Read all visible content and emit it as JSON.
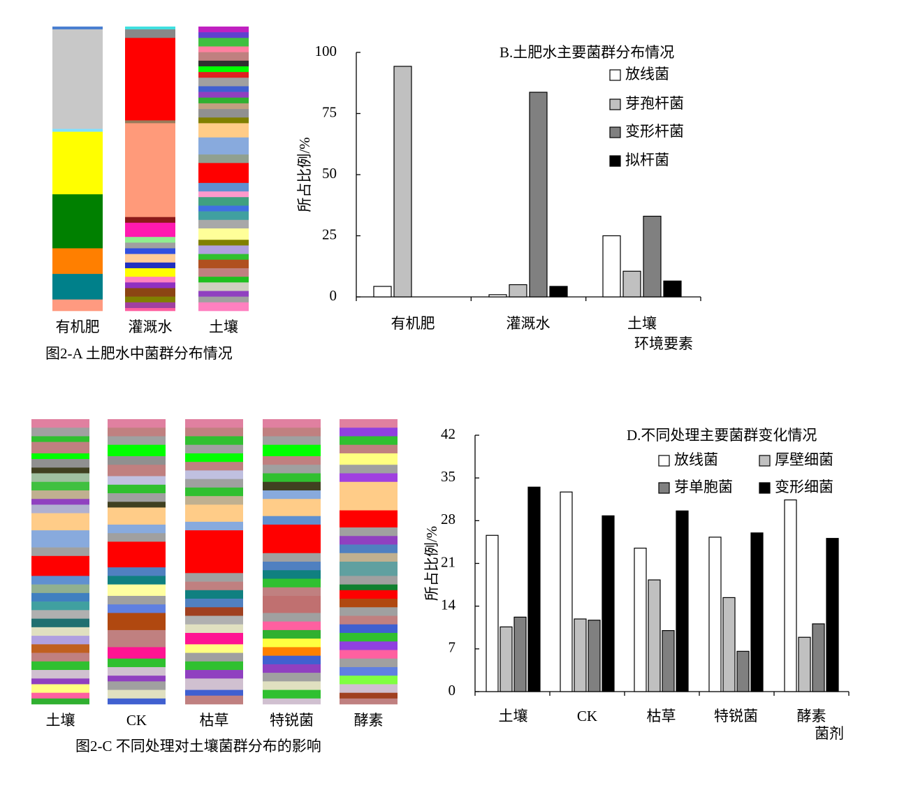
{
  "chart_data": [
    {
      "type": "stripes",
      "caption": "图2-A 土肥水中菌群分布情况",
      "categories": [
        "有机肥",
        "灌溉水",
        "土壤"
      ],
      "segments": [
        [
          {
            "value": 1,
            "color": "#4a7fd0"
          },
          {
            "value": 35,
            "color": "#c8c8c8"
          },
          {
            "value": 1,
            "color": "#80e0ff"
          },
          {
            "value": 22,
            "color": "#ffff00"
          },
          {
            "value": 19,
            "color": "#008000"
          },
          {
            "value": 9,
            "color": "#ff7f00"
          },
          {
            "value": 9,
            "color": "#00808a"
          },
          {
            "value": 4,
            "color": "#ff9a80"
          }
        ],
        [
          {
            "value": 1,
            "color": "#40e0e0"
          },
          {
            "value": 3,
            "color": "#888888"
          },
          {
            "value": 29,
            "color": "#ff0000"
          },
          {
            "value": 1,
            "color": "#9a7a5a"
          },
          {
            "value": 33,
            "color": "#ff9a7a"
          },
          {
            "value": 2,
            "color": "#8b1a1a"
          },
          {
            "value": 5,
            "color": "#ff1ab0"
          },
          {
            "value": 2,
            "color": "#90ee90"
          },
          {
            "value": 2,
            "color": "#a0a0a0"
          },
          {
            "value": 2,
            "color": "#3050e0"
          },
          {
            "value": 3,
            "color": "#ffcc99"
          },
          {
            "value": 2,
            "color": "#2030c0"
          },
          {
            "value": 3,
            "color": "#ffff00"
          },
          {
            "value": 2,
            "color": "#ff80c0"
          },
          {
            "value": 2,
            "color": "#9030c0"
          },
          {
            "value": 3,
            "color": "#8b4513"
          },
          {
            "value": 2,
            "color": "#808000"
          },
          {
            "value": 2,
            "color": "#a040a0"
          },
          {
            "value": 1,
            "color": "#ff60a0"
          }
        ],
        [
          {
            "value": 2,
            "color": "#c020c0"
          },
          {
            "value": 2,
            "color": "#6040d0"
          },
          {
            "value": 3,
            "color": "#40c040"
          },
          {
            "value": 2,
            "color": "#ff80a0"
          },
          {
            "value": 3,
            "color": "#c08080"
          },
          {
            "value": 2,
            "color": "#303030"
          },
          {
            "value": 2,
            "color": "#00ff00"
          },
          {
            "value": 2,
            "color": "#e02020"
          },
          {
            "value": 3,
            "color": "#a0a0a0"
          },
          {
            "value": 2,
            "color": "#4060d0"
          },
          {
            "value": 2,
            "color": "#9040c0"
          },
          {
            "value": 2,
            "color": "#30b030"
          },
          {
            "value": 2,
            "color": "#c0a080"
          },
          {
            "value": 3,
            "color": "#909090"
          },
          {
            "value": 2,
            "color": "#808000"
          },
          {
            "value": 5,
            "color": "#ffcc88"
          },
          {
            "value": 6,
            "color": "#88aadd"
          },
          {
            "value": 3,
            "color": "#90a090"
          },
          {
            "value": 7,
            "color": "#ff0000"
          },
          {
            "value": 3,
            "color": "#6090d0"
          },
          {
            "value": 2,
            "color": "#ff99cc"
          },
          {
            "value": 3,
            "color": "#40a080"
          },
          {
            "value": 2,
            "color": "#4070e0"
          },
          {
            "value": 3,
            "color": "#40a0a0"
          },
          {
            "value": 3,
            "color": "#a8a8a8"
          },
          {
            "value": 4,
            "color": "#ffff99"
          },
          {
            "value": 2,
            "color": "#808000"
          },
          {
            "value": 3,
            "color": "#b0a0e0"
          },
          {
            "value": 2,
            "color": "#30c030"
          },
          {
            "value": 3,
            "color": "#b05020"
          },
          {
            "value": 3,
            "color": "#c08080"
          },
          {
            "value": 2,
            "color": "#20c020"
          },
          {
            "value": 3,
            "color": "#d0d0c0"
          },
          {
            "value": 2,
            "color": "#9040c0"
          },
          {
            "value": 2,
            "color": "#a0a0a0"
          },
          {
            "value": 3,
            "color": "#ff80c0"
          }
        ]
      ]
    },
    {
      "type": "bar",
      "title": "B.土肥水主要菌群分布情况",
      "ylabel": "所占比例/%",
      "xlabel": "环境要素",
      "categories": [
        "有机肥",
        "灌溉水",
        "土壤"
      ],
      "ylim": [
        0,
        100
      ],
      "yticks": [
        0,
        25,
        50,
        75,
        100
      ],
      "series": [
        {
          "name": "放线菌",
          "color": "#ffffff",
          "values": [
            4.3,
            0.9,
            25
          ]
        },
        {
          "name": "芽孢杆菌",
          "color": "#c0c0c0",
          "values": [
            94.3,
            5,
            10.5
          ]
        },
        {
          "name": "变形杆菌",
          "color": "#808080",
          "values": [
            0,
            83.7,
            33
          ]
        },
        {
          "name": "拟杆菌",
          "color": "#000000",
          "values": [
            0,
            4.3,
            6.5
          ]
        }
      ]
    },
    {
      "type": "stripes",
      "caption": "图2-C 不同处理对土壤菌群分布的影响",
      "categories": [
        "土壤",
        "CK",
        "枯草",
        "特锐菌",
        "酵素"
      ],
      "segments": [
        [
          {
            "value": 3,
            "color": "#e080a0"
          },
          {
            "value": 3,
            "color": "#a0a0a0"
          },
          {
            "value": 2,
            "color": "#30c030"
          },
          {
            "value": 4,
            "color": "#c08080"
          },
          {
            "value": 2,
            "color": "#00ff00"
          },
          {
            "value": 3,
            "color": "#909090"
          },
          {
            "value": 2,
            "color": "#404020"
          },
          {
            "value": 3,
            "color": "#a0c0a0"
          },
          {
            "value": 3,
            "color": "#40c040"
          },
          {
            "value": 3,
            "color": "#c0b090"
          },
          {
            "value": 2,
            "color": "#9040c0"
          },
          {
            "value": 3,
            "color": "#b0b0d0"
          },
          {
            "value": 6,
            "color": "#ffcc88"
          },
          {
            "value": 6,
            "color": "#88aadd"
          },
          {
            "value": 3,
            "color": "#a0a0a0"
          },
          {
            "value": 7,
            "color": "#ff0000"
          },
          {
            "value": 3,
            "color": "#6090d0"
          },
          {
            "value": 3,
            "color": "#90b090"
          },
          {
            "value": 3,
            "color": "#4080c0"
          },
          {
            "value": 3,
            "color": "#40a0a0"
          },
          {
            "value": 3,
            "color": "#b0b0b0"
          },
          {
            "value": 3,
            "color": "#207070"
          },
          {
            "value": 3,
            "color": "#e0e0c0"
          },
          {
            "value": 3,
            "color": "#b0a0e0"
          },
          {
            "value": 3,
            "color": "#c06020"
          },
          {
            "value": 3,
            "color": "#c08080"
          },
          {
            "value": 3,
            "color": "#30c030"
          },
          {
            "value": 3,
            "color": "#d0c0d0"
          },
          {
            "value": 2,
            "color": "#9040c0"
          },
          {
            "value": 3,
            "color": "#ffff80"
          },
          {
            "value": 2,
            "color": "#ff60a0"
          },
          {
            "value": 2,
            "color": "#30b030"
          }
        ],
        [
          {
            "value": 3,
            "color": "#e080a0"
          },
          {
            "value": 3,
            "color": "#c08080"
          },
          {
            "value": 3,
            "color": "#a0a0a0"
          },
          {
            "value": 4,
            "color": "#00ff00"
          },
          {
            "value": 3,
            "color": "#909090"
          },
          {
            "value": 4,
            "color": "#c08080"
          },
          {
            "value": 3,
            "color": "#c0c0e0"
          },
          {
            "value": 3,
            "color": "#30c030"
          },
          {
            "value": 3,
            "color": "#a0a0a0"
          },
          {
            "value": 2,
            "color": "#404020"
          },
          {
            "value": 6,
            "color": "#ffcc88"
          },
          {
            "value": 3,
            "color": "#88aadd"
          },
          {
            "value": 3,
            "color": "#a0a0a0"
          },
          {
            "value": 9,
            "color": "#ff0000"
          },
          {
            "value": 3,
            "color": "#5080c0"
          },
          {
            "value": 3,
            "color": "#108080"
          },
          {
            "value": 4,
            "color": "#ffffa0"
          },
          {
            "value": 3,
            "color": "#a0a0a0"
          },
          {
            "value": 3,
            "color": "#6080e0"
          },
          {
            "value": 6,
            "color": "#b04810"
          },
          {
            "value": 6,
            "color": "#c08080"
          },
          {
            "value": 4,
            "color": "#ff1493"
          },
          {
            "value": 3,
            "color": "#30c030"
          },
          {
            "value": 3,
            "color": "#d0c0d0"
          },
          {
            "value": 2,
            "color": "#9040c0"
          },
          {
            "value": 3,
            "color": "#a0a0a0"
          },
          {
            "value": 3,
            "color": "#e0e0c0"
          },
          {
            "value": 2,
            "color": "#4060d0"
          }
        ],
        [
          {
            "value": 3,
            "color": "#e080a0"
          },
          {
            "value": 3,
            "color": "#c08080"
          },
          {
            "value": 3,
            "color": "#30c030"
          },
          {
            "value": 3,
            "color": "#a0a0a0"
          },
          {
            "value": 3,
            "color": "#00ff00"
          },
          {
            "value": 3,
            "color": "#c08080"
          },
          {
            "value": 3,
            "color": "#c0c0e0"
          },
          {
            "value": 3,
            "color": "#a0a0a0"
          },
          {
            "value": 3,
            "color": "#30c030"
          },
          {
            "value": 3,
            "color": "#c0b090"
          },
          {
            "value": 6,
            "color": "#ffcc88"
          },
          {
            "value": 3,
            "color": "#88aadd"
          },
          {
            "value": 15,
            "color": "#ff0000"
          },
          {
            "value": 3,
            "color": "#a0a0a0"
          },
          {
            "value": 3,
            "color": "#c08080"
          },
          {
            "value": 3,
            "color": "#108080"
          },
          {
            "value": 3,
            "color": "#5080c0"
          },
          {
            "value": 3,
            "color": "#a04020"
          },
          {
            "value": 3,
            "color": "#b0b0b0"
          },
          {
            "value": 3,
            "color": "#e0e0c0"
          },
          {
            "value": 4,
            "color": "#ff1493"
          },
          {
            "value": 3,
            "color": "#ffff80"
          },
          {
            "value": 3,
            "color": "#a0a0a0"
          },
          {
            "value": 3,
            "color": "#30c030"
          },
          {
            "value": 3,
            "color": "#9040c0"
          },
          {
            "value": 4,
            "color": "#d0c0d0"
          },
          {
            "value": 2,
            "color": "#4060d0"
          },
          {
            "value": 3,
            "color": "#c08080"
          }
        ],
        [
          {
            "value": 3,
            "color": "#e080a0"
          },
          {
            "value": 3,
            "color": "#c08080"
          },
          {
            "value": 3,
            "color": "#a0a0a0"
          },
          {
            "value": 4,
            "color": "#00ff00"
          },
          {
            "value": 3,
            "color": "#c08080"
          },
          {
            "value": 3,
            "color": "#a0a0a0"
          },
          {
            "value": 3,
            "color": "#30c030"
          },
          {
            "value": 3,
            "color": "#404020"
          },
          {
            "value": 3,
            "color": "#88aadd"
          },
          {
            "value": 6,
            "color": "#ffcc88"
          },
          {
            "value": 3,
            "color": "#6090d0"
          },
          {
            "value": 10,
            "color": "#ff0000"
          },
          {
            "value": 3,
            "color": "#a0a0a0"
          },
          {
            "value": 3,
            "color": "#5080c0"
          },
          {
            "value": 3,
            "color": "#108080"
          },
          {
            "value": 3,
            "color": "#30c030"
          },
          {
            "value": 3,
            "color": "#c08080"
          },
          {
            "value": 6,
            "color": "#c07070"
          },
          {
            "value": 3,
            "color": "#a0a0a0"
          },
          {
            "value": 3,
            "color": "#ff60a0"
          },
          {
            "value": 3,
            "color": "#30b030"
          },
          {
            "value": 3,
            "color": "#ffff40"
          },
          {
            "value": 3,
            "color": "#ff8000"
          },
          {
            "value": 3,
            "color": "#4060d0"
          },
          {
            "value": 3,
            "color": "#9040c0"
          },
          {
            "value": 3,
            "color": "#a0a0a0"
          },
          {
            "value": 3,
            "color": "#e0e0c0"
          },
          {
            "value": 3,
            "color": "#30c030"
          },
          {
            "value": 2,
            "color": "#d0c0d0"
          }
        ],
        [
          {
            "value": 3,
            "color": "#e080a0"
          },
          {
            "value": 3,
            "color": "#9040e0"
          },
          {
            "value": 3,
            "color": "#30c030"
          },
          {
            "value": 3,
            "color": "#c08080"
          },
          {
            "value": 4,
            "color": "#ffff80"
          },
          {
            "value": 3,
            "color": "#a0a0a0"
          },
          {
            "value": 3,
            "color": "#a040e0"
          },
          {
            "value": 10,
            "color": "#ffcc88"
          },
          {
            "value": 6,
            "color": "#ff0000"
          },
          {
            "value": 3,
            "color": "#a0a0a0"
          },
          {
            "value": 3,
            "color": "#9040c0"
          },
          {
            "value": 3,
            "color": "#5080c0"
          },
          {
            "value": 3,
            "color": "#c0b090"
          },
          {
            "value": 5,
            "color": "#60a0a0"
          },
          {
            "value": 3,
            "color": "#a0a0a0"
          },
          {
            "value": 2,
            "color": "#108030"
          },
          {
            "value": 3,
            "color": "#ff0000"
          },
          {
            "value": 3,
            "color": "#b04810"
          },
          {
            "value": 3,
            "color": "#a0a0a0"
          },
          {
            "value": 3,
            "color": "#c08080"
          },
          {
            "value": 3,
            "color": "#4060d0"
          },
          {
            "value": 3,
            "color": "#30c030"
          },
          {
            "value": 3,
            "color": "#9040e0"
          },
          {
            "value": 3,
            "color": "#ff60a0"
          },
          {
            "value": 3,
            "color": "#a0a0a0"
          },
          {
            "value": 3,
            "color": "#6080e0"
          },
          {
            "value": 3,
            "color": "#80ff40"
          },
          {
            "value": 3,
            "color": "#d0c0d0"
          },
          {
            "value": 2,
            "color": "#a04020"
          },
          {
            "value": 2,
            "color": "#c08080"
          }
        ]
      ]
    },
    {
      "type": "bar",
      "title": "D.不同处理主要菌群变化情况",
      "ylabel": "所占比例/%",
      "xlabel": "菌剂",
      "categories": [
        "土壤",
        "CK",
        "枯草",
        "特锐菌",
        "酵素"
      ],
      "ylim": [
        0,
        42
      ],
      "yticks": [
        0,
        7,
        14,
        21,
        28,
        35,
        42
      ],
      "series": [
        {
          "name": "放线菌",
          "color": "#ffffff",
          "values": [
            25.6,
            32.7,
            23.5,
            25.3,
            31.4
          ]
        },
        {
          "name": "厚壁细菌",
          "color": "#c0c0c0",
          "values": [
            10.6,
            11.9,
            18.3,
            15.4,
            8.9
          ]
        },
        {
          "name": "芽单胞菌",
          "color": "#808080",
          "values": [
            12.2,
            11.7,
            10,
            6.6,
            11.1
          ]
        },
        {
          "name": "变形细菌",
          "color": "#000000",
          "values": [
            33.5,
            28.8,
            29.6,
            26,
            25.1
          ]
        }
      ]
    }
  ]
}
